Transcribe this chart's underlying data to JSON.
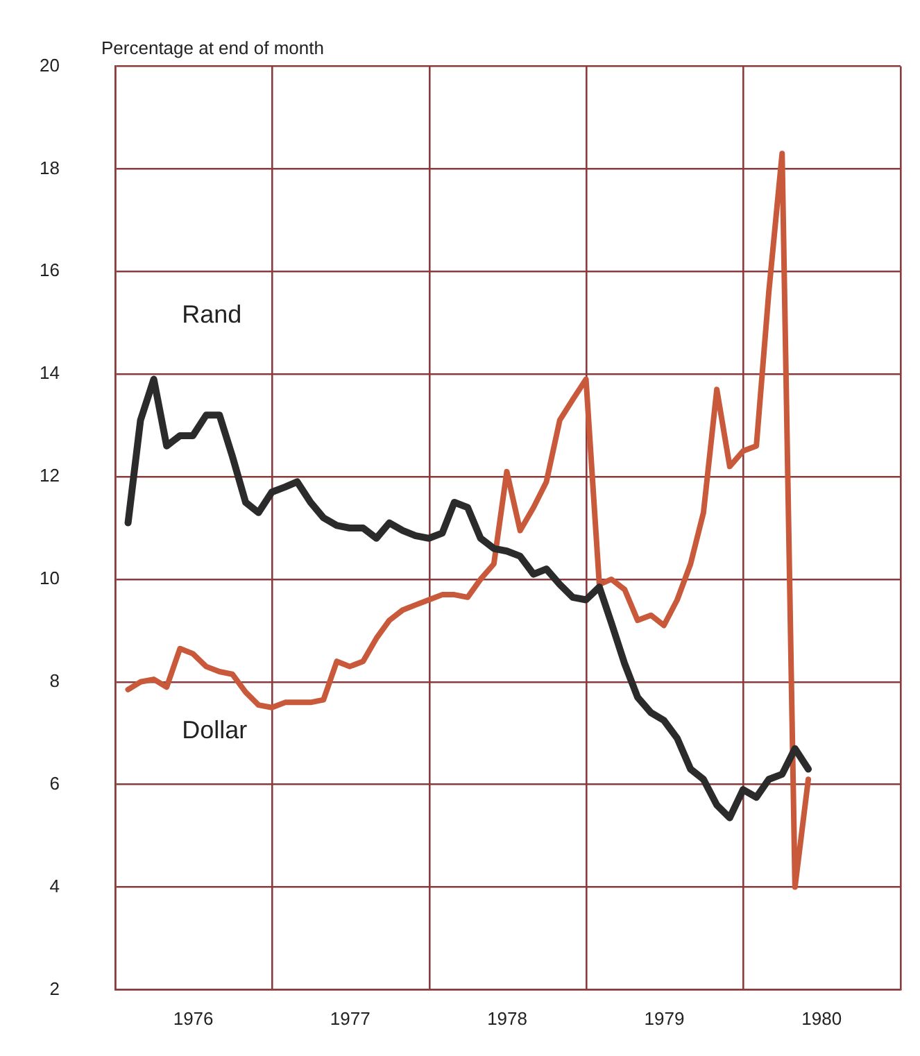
{
  "chart_data": {
    "type": "line",
    "ylabel": "Percentage at end of month",
    "x": [
      "1976-01-31",
      "1976-02-29",
      "1976-03-31",
      "1976-04-30",
      "1976-05-31",
      "1976-06-30",
      "1976-07-31",
      "1976-08-31",
      "1976-09-30",
      "1976-10-31",
      "1976-11-30",
      "1976-12-31",
      "1977-01-31",
      "1977-02-28",
      "1977-03-31",
      "1977-04-30",
      "1977-05-31",
      "1977-06-30",
      "1977-07-31",
      "1977-08-31",
      "1977-09-30",
      "1977-10-31",
      "1977-11-30",
      "1977-12-31",
      "1978-01-31",
      "1978-02-28",
      "1978-03-31",
      "1978-04-30",
      "1978-05-31",
      "1978-06-30",
      "1978-07-31",
      "1978-08-31",
      "1978-09-30",
      "1978-10-31",
      "1978-11-30",
      "1978-12-31",
      "1979-01-31",
      "1979-02-28",
      "1979-03-31",
      "1979-04-30",
      "1979-05-31",
      "1979-06-30",
      "1979-07-31",
      "1979-08-31",
      "1979-09-30",
      "1979-10-31",
      "1979-11-30",
      "1979-12-31",
      "1980-01-31",
      "1980-02-29",
      "1980-03-31",
      "1980-04-30",
      "1980-05-31"
    ],
    "series": [
      {
        "name": "Rand",
        "color": "#2b2b2b",
        "values": [
          11.1,
          13.1,
          13.9,
          12.6,
          12.8,
          12.8,
          13.2,
          13.2,
          12.4,
          11.5,
          11.3,
          11.7,
          11.8,
          11.9,
          11.5,
          11.2,
          11.05,
          11.0,
          11.0,
          10.8,
          11.1,
          10.95,
          10.85,
          10.8,
          10.9,
          11.5,
          11.4,
          10.8,
          10.6,
          10.55,
          10.45,
          10.1,
          10.2,
          9.9,
          9.65,
          9.6,
          9.85,
          9.15,
          8.35,
          7.7,
          7.4,
          7.25,
          6.9,
          6.3,
          6.1,
          5.6,
          5.35,
          5.9,
          5.75,
          6.1,
          6.2,
          6.7,
          6.3
        ]
      },
      {
        "name": "Dollar",
        "color": "#c8593a",
        "values": [
          7.85,
          8.0,
          8.05,
          7.9,
          8.65,
          8.55,
          8.3,
          8.2,
          8.15,
          7.8,
          7.55,
          7.5,
          7.6,
          7.6,
          7.6,
          7.65,
          8.4,
          8.3,
          8.4,
          8.85,
          9.2,
          9.4,
          9.5,
          9.6,
          9.7,
          9.7,
          9.65,
          10.0,
          10.3,
          12.1,
          10.95,
          11.4,
          11.9,
          13.1,
          13.5,
          13.9,
          9.9,
          10.0,
          9.8,
          9.2,
          9.3,
          9.1,
          9.6,
          10.3,
          11.3,
          13.7,
          12.2,
          12.5,
          12.6,
          15.6,
          18.3,
          4.0,
          6.1
        ]
      }
    ],
    "xlim": [
      "1976-01-01",
      "1981-01-01"
    ],
    "xticks": [
      {
        "value": "1976-01-01",
        "label": null
      },
      {
        "value": "1976-07-01",
        "label": "1976"
      },
      {
        "value": "1977-01-01",
        "label": null
      },
      {
        "value": "1977-07-01",
        "label": "1977"
      },
      {
        "value": "1978-01-01",
        "label": null
      },
      {
        "value": "1978-07-01",
        "label": "1978"
      },
      {
        "value": "1979-01-01",
        "label": null
      },
      {
        "value": "1979-07-01",
        "label": "1979"
      },
      {
        "value": "1980-01-01",
        "label": null
      },
      {
        "value": "1980-07-01",
        "label": "1980"
      },
      {
        "value": "1981-01-01",
        "label": null
      }
    ],
    "ylim": [
      2,
      20
    ],
    "yticks": [
      2,
      4,
      6,
      8,
      10,
      12,
      14,
      16,
      18,
      20
    ],
    "grid": true,
    "legend": false,
    "marker": "none",
    "line_style": "solid"
  }
}
